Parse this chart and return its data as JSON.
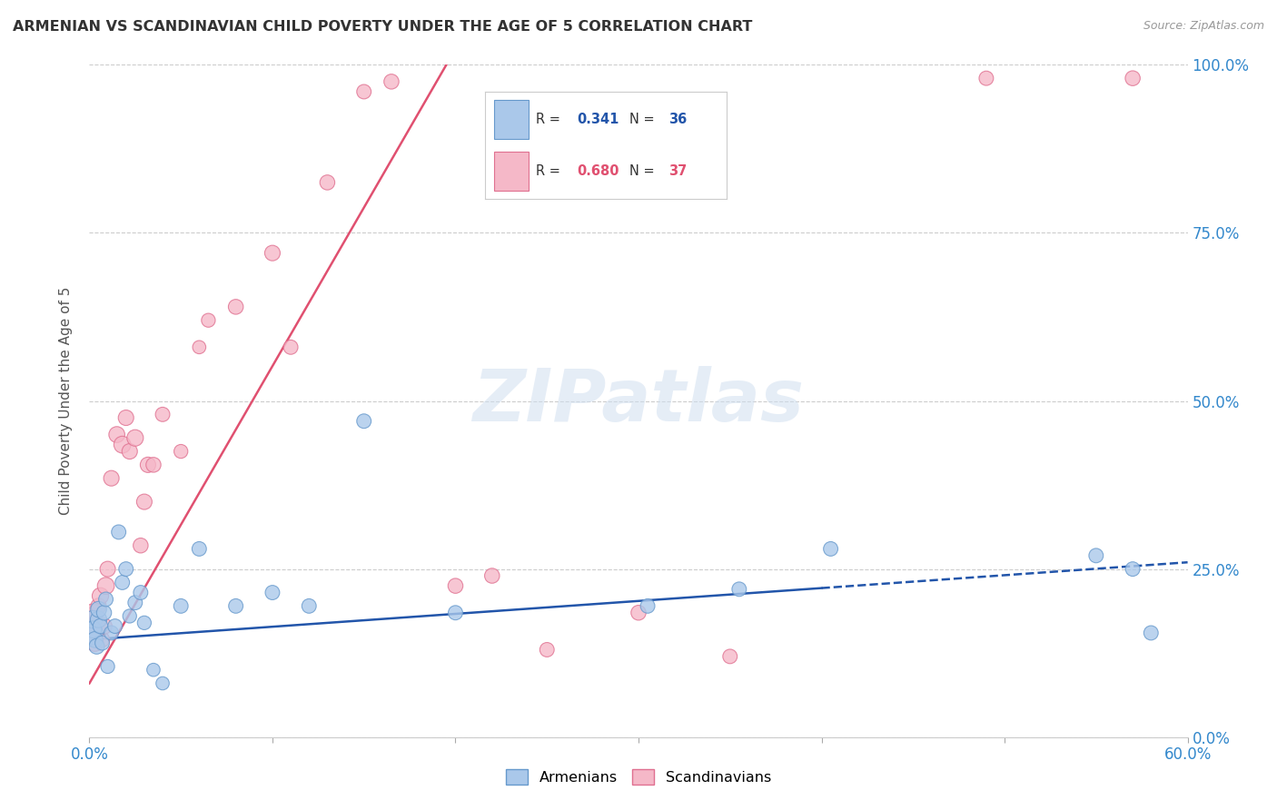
{
  "title": "ARMENIAN VS SCANDINAVIAN CHILD POVERTY UNDER THE AGE OF 5 CORRELATION CHART",
  "source": "Source: ZipAtlas.com",
  "ylabel": "Child Poverty Under the Age of 5",
  "xlim": [
    0.0,
    0.6
  ],
  "ylim": [
    0.0,
    1.0
  ],
  "xtick_vals": [
    0.0,
    0.1,
    0.2,
    0.3,
    0.4,
    0.5,
    0.6
  ],
  "ytick_vals": [
    0.0,
    0.25,
    0.5,
    0.75,
    1.0
  ],
  "yticklabels": [
    "0.0%",
    "25.0%",
    "50.0%",
    "75.0%",
    "100.0%"
  ],
  "armenian_color": "#aac8ea",
  "scandinavian_color": "#f5b8c8",
  "armenian_edge": "#6699cc",
  "scandinavian_edge": "#e07090",
  "armenian_line_color": "#2255aa",
  "scandinavian_line_color": "#e05070",
  "R_armenian": "0.341",
  "N_armenian": "36",
  "R_scandinavian": "0.680",
  "N_scandinavian": "37",
  "watermark_text": "ZIPatlas",
  "arm_x": [
    0.001,
    0.002,
    0.002,
    0.003,
    0.004,
    0.005,
    0.005,
    0.006,
    0.007,
    0.008,
    0.009,
    0.01,
    0.012,
    0.014,
    0.016,
    0.018,
    0.02,
    0.022,
    0.025,
    0.028,
    0.03,
    0.035,
    0.04,
    0.05,
    0.06,
    0.08,
    0.1,
    0.12,
    0.15,
    0.2,
    0.305,
    0.355,
    0.405,
    0.55,
    0.57,
    0.58
  ],
  "arm_y": [
    0.155,
    0.175,
    0.16,
    0.145,
    0.135,
    0.175,
    0.19,
    0.165,
    0.14,
    0.185,
    0.205,
    0.105,
    0.155,
    0.165,
    0.305,
    0.23,
    0.25,
    0.18,
    0.2,
    0.215,
    0.17,
    0.1,
    0.08,
    0.195,
    0.28,
    0.195,
    0.215,
    0.195,
    0.47,
    0.185,
    0.195,
    0.22,
    0.28,
    0.27,
    0.25,
    0.155
  ],
  "scan_x": [
    0.001,
    0.002,
    0.003,
    0.004,
    0.005,
    0.006,
    0.007,
    0.008,
    0.009,
    0.01,
    0.012,
    0.015,
    0.018,
    0.02,
    0.022,
    0.025,
    0.028,
    0.03,
    0.032,
    0.035,
    0.04,
    0.05,
    0.06,
    0.065,
    0.08,
    0.1,
    0.11,
    0.13,
    0.15,
    0.165,
    0.2,
    0.22,
    0.25,
    0.3,
    0.35,
    0.49,
    0.57
  ],
  "scan_y": [
    0.175,
    0.185,
    0.14,
    0.16,
    0.195,
    0.21,
    0.145,
    0.165,
    0.225,
    0.25,
    0.385,
    0.45,
    0.435,
    0.475,
    0.425,
    0.445,
    0.285,
    0.35,
    0.405,
    0.405,
    0.48,
    0.425,
    0.58,
    0.62,
    0.64,
    0.72,
    0.58,
    0.825,
    0.96,
    0.975,
    0.225,
    0.24,
    0.13,
    0.185,
    0.12,
    0.98,
    0.98
  ],
  "arm_sizes": [
    350,
    200,
    180,
    160,
    150,
    170,
    160,
    140,
    130,
    140,
    130,
    120,
    130,
    130,
    130,
    130,
    130,
    120,
    130,
    130,
    120,
    110,
    110,
    130,
    130,
    130,
    130,
    130,
    130,
    130,
    130,
    130,
    130,
    130,
    130,
    130
  ],
  "scan_sizes": [
    350,
    200,
    180,
    160,
    150,
    170,
    140,
    160,
    180,
    150,
    150,
    160,
    180,
    150,
    150,
    170,
    140,
    150,
    150,
    140,
    130,
    120,
    110,
    120,
    140,
    150,
    130,
    140,
    130,
    140,
    140,
    140,
    130,
    140,
    130,
    130,
    140
  ],
  "scan_line_pts": [
    [
      0.0,
      0.08
    ],
    [
      0.195,
      1.0
    ]
  ],
  "arm_line_pts": [
    [
      0.0,
      0.145
    ],
    [
      0.6,
      0.26
    ]
  ]
}
